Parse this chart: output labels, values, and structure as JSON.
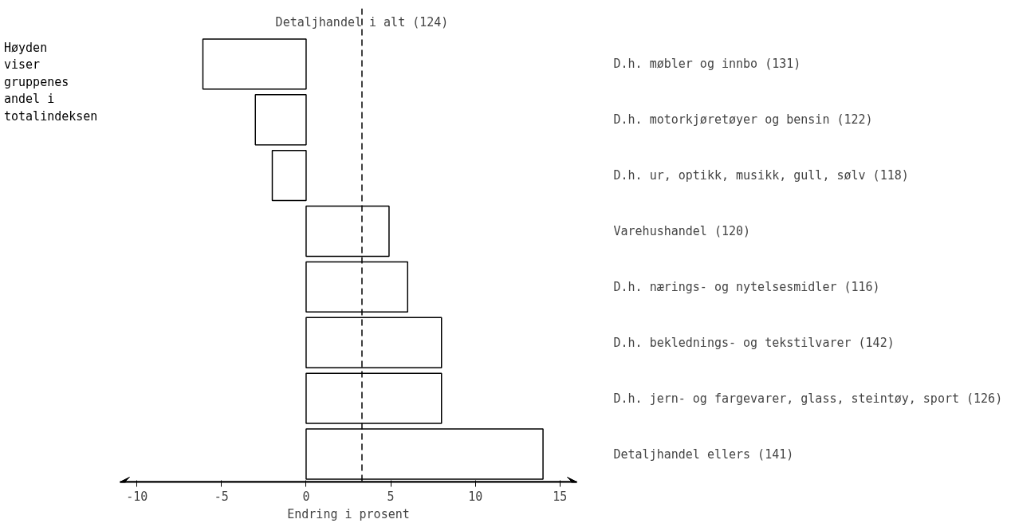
{
  "chart_data": {
    "type": "bar",
    "orientation": "horizontal",
    "categories": [
      "D.h. møbler og innbo (131)",
      "D.h. motorkjøretøyer og bensin (122)",
      "D.h. ur, optikk, musikk, gull, sølv (118)",
      "Varehushandel (120)",
      "D.h. nærings- og nytelsesmidler (116)",
      "D.h. beklednings- og tekstilvarer (142)",
      "D.h. jern- og fargevarer, glass, steintøy, sport (126)",
      "Detaljhandel ellers (141)"
    ],
    "values": [
      -6.1,
      -3.0,
      -2.0,
      4.9,
      6.0,
      8.0,
      8.0,
      14.0
    ],
    "color": "#ffffff",
    "xlim": [
      -11,
      16
    ],
    "xticks": [
      -10,
      -5,
      0,
      5,
      10,
      15
    ],
    "xlabel": "Endring i prosent",
    "ref_lines": [
      {
        "axis": "x",
        "value": 3.3,
        "label": "Detaljhandel i alt (124)",
        "line_style": "dashed"
      }
    ],
    "annotations": [
      "Høyden viser gruppenes andel i totalindeksen"
    ],
    "grid": false
  }
}
